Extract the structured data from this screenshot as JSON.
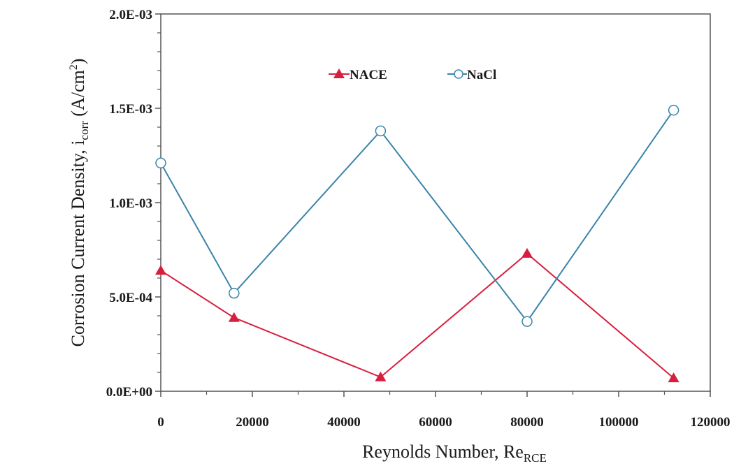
{
  "chart_data": {
    "type": "line",
    "xlabel": {
      "main": "Reynolds Number, Re",
      "sub": "RCE"
    },
    "ylabel": {
      "main": "Corrosion Current Density, i",
      "sub": "corr",
      "unit": " (A/cm",
      "sup": "2",
      "close": ")"
    },
    "xlim": [
      0,
      120000
    ],
    "ylim": [
      0,
      0.002
    ],
    "x_ticks": [
      0,
      20000,
      40000,
      60000,
      80000,
      100000,
      120000
    ],
    "x_tick_labels": [
      "0",
      "20000",
      "40000",
      "60000",
      "80000",
      "100000",
      "120000"
    ],
    "y_ticks": [
      0,
      0.0005,
      0.001,
      0.0015,
      0.002
    ],
    "y_tick_labels": [
      "0.0E+00",
      "5.0E-04",
      "1.0E-03",
      "1.5E-03",
      "2.0E-03"
    ],
    "grid": false,
    "legend_position": "top-center",
    "series": [
      {
        "name": "NACE",
        "marker": "triangle",
        "color": "#d81e3f",
        "x": [
          0,
          16000,
          48000,
          80000,
          112000
        ],
        "y": [
          0.00064,
          0.00039,
          7.5e-05,
          0.00073,
          7e-05
        ]
      },
      {
        "name": "NaCl",
        "marker": "open-circle",
        "color": "#3a84a8",
        "x": [
          0,
          16000,
          48000,
          80000,
          112000
        ],
        "y": [
          0.00121,
          0.00052,
          0.00138,
          0.00037,
          0.00149
        ]
      }
    ]
  }
}
